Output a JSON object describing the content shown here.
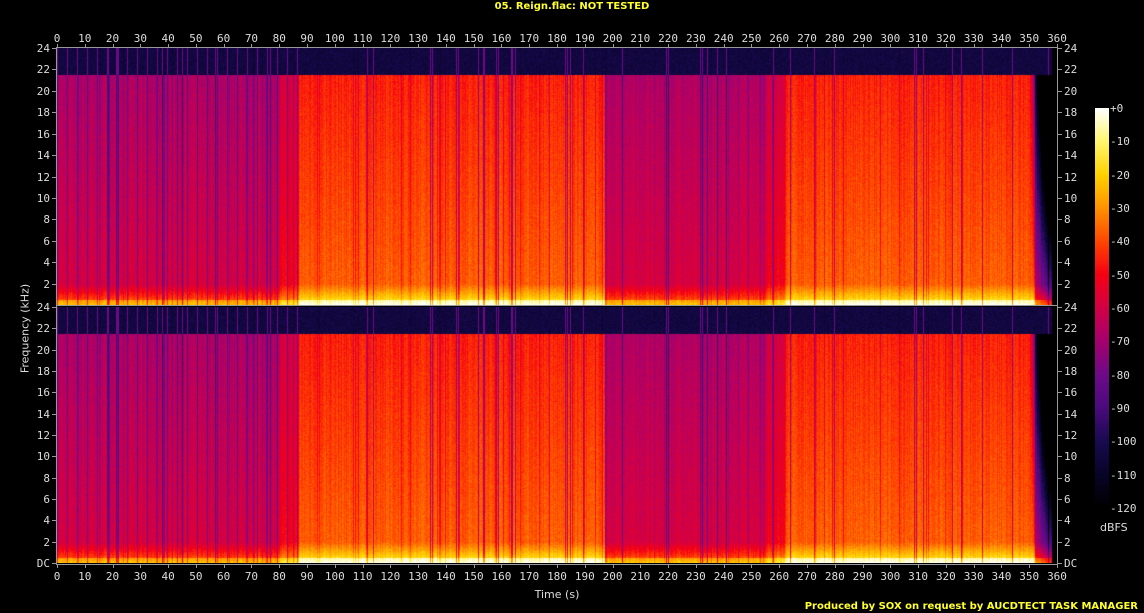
{
  "title": "05. Reign.flac: NOT TESTED",
  "credit": "Produced by SOX on request by AUCDTECT TASK MANAGER",
  "chart_data": {
    "type": "heatmap",
    "title": "05. Reign.flac: NOT TESTED",
    "xlabel": "Time (s)",
    "ylabel": "Frequency (kHz)",
    "xlim": [
      0,
      360
    ],
    "ylim": [
      0,
      24
    ],
    "channels": 2,
    "x_ticks": [
      "0",
      "10",
      "20",
      "30",
      "40",
      "50",
      "60",
      "70",
      "80",
      "90",
      "100",
      "110",
      "120",
      "130",
      "140",
      "150",
      "160",
      "170",
      "180",
      "190",
      "200",
      "210",
      "220",
      "230",
      "240",
      "250",
      "260",
      "270",
      "280",
      "290",
      "300",
      "310",
      "320",
      "330",
      "340",
      "350",
      "360"
    ],
    "y_ticks_top": [
      "2",
      "4",
      "6",
      "8",
      "10",
      "12",
      "14",
      "16",
      "18",
      "20",
      "22",
      "24"
    ],
    "y_ticks_bottom": [
      "DC",
      "2",
      "4",
      "6",
      "8",
      "10",
      "12",
      "14",
      "16",
      "18",
      "20",
      "22",
      "24"
    ],
    "lowpass_cutoff_khz": 21.5,
    "loud_sections_s": [
      [
        87,
        197
      ],
      [
        262,
        352
      ]
    ],
    "colorbar": {
      "label": "dBFS",
      "ticks": [
        "+0",
        "-10",
        "-20",
        "-30",
        "-40",
        "-50",
        "-60",
        "-70",
        "-80",
        "-90",
        "-100",
        "-110",
        "-120"
      ],
      "range": [
        -120,
        0
      ]
    }
  }
}
